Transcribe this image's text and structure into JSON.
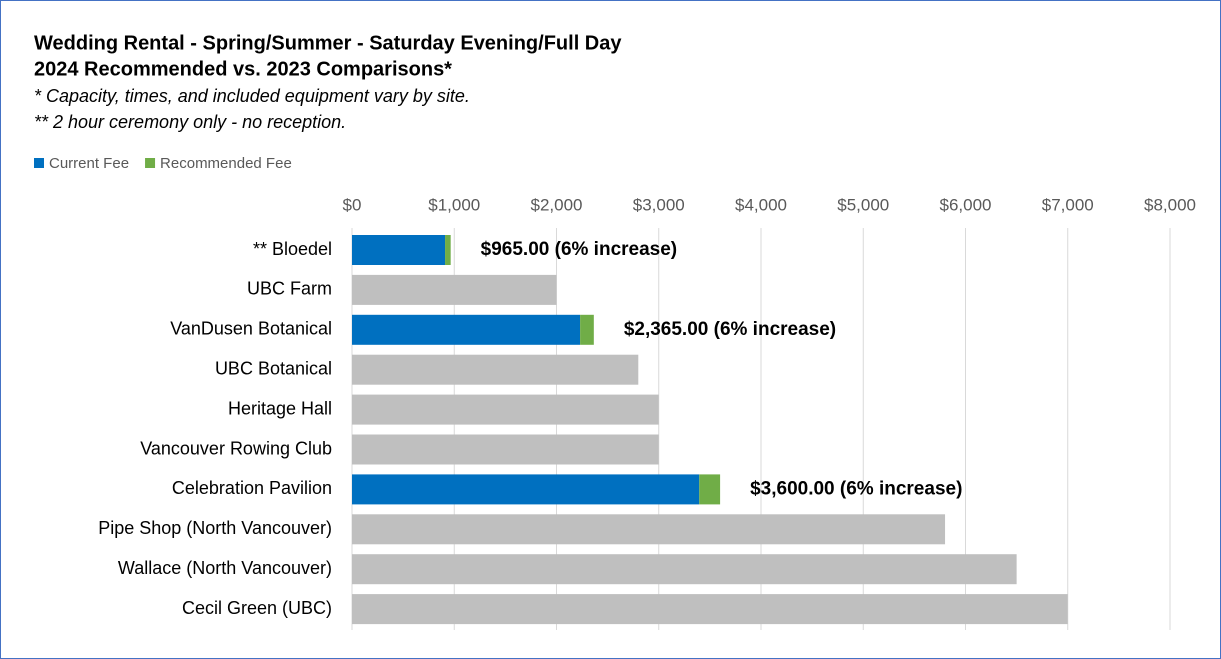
{
  "chart_data": {
    "type": "stacked-barh",
    "title": "Wedding Rental - Spring/Summer - Saturday Evening/Full Day",
    "subtitle": "2024 Recommended vs. 2023 Comparisons*",
    "notes": [
      "* Capacity, times, and included equipment vary by site.",
      "** 2 hour ceremony only - no reception."
    ],
    "categories": [
      "** Bloedel",
      "UBC Farm",
      "VanDusen Botanical",
      "UBC Botanical",
      "Heritage Hall",
      "Vancouver Rowing Club",
      "Celebration Pavilion",
      "Pipe Shop (North Vancouver)",
      "Wallace (North Vancouver)",
      "Cecil Green (UBC)"
    ],
    "series": [
      {
        "name": "Current Fee",
        "color": "#0070c0",
        "values": [
          910,
          null,
          2231,
          null,
          null,
          null,
          3396,
          null,
          null,
          null
        ]
      },
      {
        "name": "Recommended Fee",
        "color": "#70ad47",
        "values": [
          55,
          null,
          134,
          null,
          null,
          null,
          204,
          null,
          null,
          null
        ]
      },
      {
        "color": "#bfbfbf",
        "values": [
          null,
          2000,
          null,
          2800,
          3000,
          3000,
          null,
          5800,
          6500,
          7000
        ]
      }
    ],
    "annotations": [
      "$965.00 (6% increase)",
      null,
      "$2,365.00 (6% increase)",
      null,
      null,
      null,
      "$3,600.00 (6% increase)",
      null,
      null,
      null
    ],
    "xlim": [
      0,
      8000
    ],
    "xticks": [
      {
        "value": 0,
        "label": "$0"
      },
      {
        "value": 1000,
        "label": "$1,000"
      },
      {
        "value": 2000,
        "label": "$2,000"
      },
      {
        "value": 3000,
        "label": "$3,000"
      },
      {
        "value": 4000,
        "label": "$4,000"
      },
      {
        "value": 5000,
        "label": "$5,000"
      },
      {
        "value": 6000,
        "label": "$6,000"
      },
      {
        "value": 7000,
        "label": "$7,000"
      },
      {
        "value": 8000,
        "label": "$8,000"
      }
    ],
    "grid": true,
    "legend": "top-left"
  }
}
